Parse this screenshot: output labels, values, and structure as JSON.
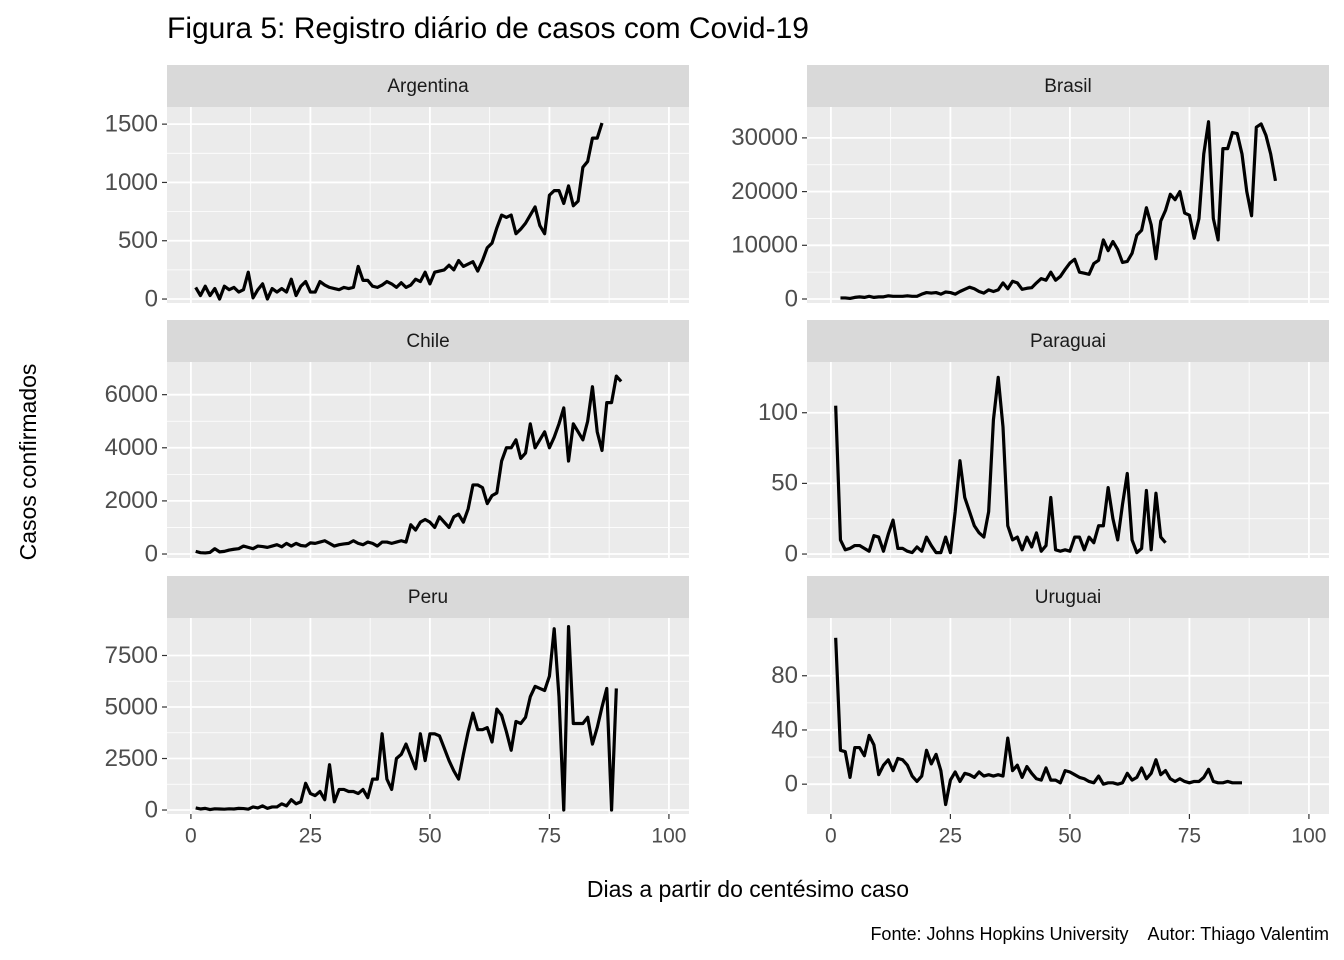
{
  "chart_data": {
    "type": "line",
    "title": "Figura 5: Registro diário de casos com Covid-19",
    "x_label": "Dias a partir do centésimo caso",
    "y_label": "Casos confirmados",
    "caption": "Fonte: Johns Hopkins University    Autor: Thiago Valentim",
    "color": "#000000",
    "grid": true,
    "xlim": [
      -5,
      104.2
    ],
    "xticks": [
      0,
      25,
      50,
      75,
      100
    ],
    "panels": [
      {
        "title": "Argentina",
        "ylim": [
          -34,
          1647
        ],
        "yticks": [
          0,
          500,
          1000,
          1500
        ],
        "x": [
          1,
          2,
          3,
          4,
          5,
          6,
          7,
          8,
          9,
          10,
          11,
          12,
          13,
          14,
          15,
          16,
          17,
          18,
          19,
          20,
          21,
          22,
          23,
          24,
          25,
          26,
          27,
          28,
          29,
          30,
          31,
          32,
          33,
          34,
          35,
          36,
          37,
          38,
          39,
          40,
          41,
          42,
          43,
          44,
          45,
          46,
          47,
          48,
          49,
          50,
          51,
          52,
          53,
          54,
          55,
          56,
          57,
          58,
          59,
          60,
          61,
          62,
          63,
          64,
          65,
          66,
          67,
          68,
          69,
          70,
          71,
          72,
          73,
          74,
          75,
          76,
          77,
          78,
          79,
          80,
          81,
          82,
          83,
          84,
          85,
          86
        ],
        "values": [
          100,
          30,
          110,
          30,
          90,
          0,
          110,
          80,
          100,
          60,
          80,
          230,
          10,
          80,
          130,
          0,
          90,
          60,
          90,
          60,
          170,
          30,
          110,
          150,
          60,
          60,
          150,
          120,
          100,
          90,
          80,
          100,
          90,
          100,
          280,
          160,
          160,
          110,
          100,
          120,
          150,
          130,
          100,
          140,
          100,
          120,
          170,
          150,
          230,
          130,
          230,
          240,
          250,
          290,
          250,
          330,
          280,
          300,
          320,
          240,
          330,
          440,
          480,
          610,
          720,
          700,
          720,
          560,
          600,
          650,
          720,
          790,
          630,
          560,
          890,
          930,
          930,
          820,
          970,
          800,
          840,
          1130,
          1180,
          1380,
          1380,
          1510
        ]
      },
      {
        "title": "Brasil",
        "ylim": [
          -745,
          35750
        ],
        "yticks": [
          0,
          10000,
          20000,
          30000
        ],
        "x": [
          2,
          3,
          4,
          5,
          6,
          7,
          8,
          9,
          10,
          11,
          12,
          13,
          14,
          15,
          16,
          17,
          18,
          19,
          20,
          21,
          22,
          23,
          24,
          25,
          26,
          27,
          28,
          29,
          30,
          31,
          32,
          33,
          34,
          35,
          36,
          37,
          38,
          39,
          40,
          41,
          42,
          43,
          44,
          45,
          46,
          47,
          48,
          49,
          50,
          51,
          52,
          53,
          54,
          55,
          56,
          57,
          58,
          59,
          60,
          61,
          62,
          63,
          64,
          65,
          66,
          67,
          68,
          69,
          70,
          71,
          72,
          73,
          74,
          75,
          76,
          77,
          78,
          79,
          80,
          81,
          82,
          83,
          84,
          85,
          86,
          87,
          88,
          89,
          90,
          91,
          92,
          93
        ],
        "values": [
          200,
          200,
          100,
          300,
          400,
          300,
          500,
          300,
          400,
          400,
          600,
          500,
          500,
          500,
          600,
          500,
          500,
          900,
          1200,
          1100,
          1200,
          900,
          1300,
          1200,
          900,
          1400,
          1800,
          2200,
          1900,
          1400,
          1100,
          1700,
          1400,
          1700,
          3000,
          1900,
          3300,
          3000,
          1800,
          2000,
          2100,
          3000,
          3800,
          3500,
          5000,
          3500,
          4200,
          5500,
          6700,
          7400,
          5000,
          4800,
          4600,
          6600,
          7200,
          11000,
          9000,
          10700,
          9200,
          6800,
          7000,
          8500,
          11900,
          12800,
          17000,
          13800,
          7500,
          14500,
          16500,
          19500,
          18500,
          20000,
          16000,
          15600,
          11300,
          15000,
          27000,
          33000,
          15000,
          11000,
          28000,
          28000,
          31000,
          30800,
          27000,
          20000,
          15500,
          32000,
          32600,
          30500,
          27000,
          22000
        ]
      },
      {
        "title": "Chile",
        "ylim": [
          -150,
          7230
        ],
        "yticks": [
          0,
          2000,
          4000,
          6000
        ],
        "x": [
          1,
          2,
          3,
          4,
          5,
          6,
          7,
          8,
          9,
          10,
          11,
          12,
          13,
          14,
          15,
          16,
          17,
          18,
          19,
          20,
          21,
          22,
          23,
          24,
          25,
          26,
          27,
          28,
          29,
          30,
          31,
          32,
          33,
          34,
          35,
          36,
          37,
          38,
          39,
          40,
          41,
          42,
          43,
          44,
          45,
          46,
          47,
          48,
          49,
          50,
          51,
          52,
          53,
          54,
          55,
          56,
          57,
          58,
          59,
          60,
          61,
          62,
          63,
          64,
          65,
          66,
          67,
          68,
          69,
          70,
          71,
          72,
          73,
          74,
          75,
          76,
          77,
          78,
          79,
          80,
          81,
          82,
          83,
          84,
          85,
          86,
          87,
          88,
          89,
          90
        ],
        "values": [
          100,
          50,
          40,
          60,
          200,
          80,
          100,
          150,
          180,
          200,
          300,
          250,
          200,
          300,
          280,
          250,
          300,
          350,
          270,
          400,
          300,
          400,
          320,
          300,
          420,
          400,
          450,
          500,
          400,
          300,
          350,
          380,
          400,
          500,
          400,
          350,
          450,
          400,
          300,
          450,
          450,
          400,
          450,
          500,
          450,
          1100,
          900,
          1200,
          1300,
          1200,
          1000,
          1400,
          1200,
          1000,
          1400,
          1500,
          1200,
          1700,
          2600,
          2600,
          2500,
          1900,
          2200,
          2300,
          3500,
          4000,
          4000,
          4300,
          3600,
          3800,
          4900,
          4000,
          4300,
          4600,
          4000,
          4400,
          4900,
          5500,
          3500,
          4900,
          4600,
          4300,
          5000,
          6300,
          4600,
          3900,
          5700,
          5700,
          6700,
          6500
        ]
      },
      {
        "title": "Paraguai",
        "ylim": [
          -2.8,
          135.9
        ],
        "yticks": [
          0,
          50,
          100
        ],
        "x": [
          1,
          2,
          3,
          4,
          5,
          6,
          7,
          8,
          9,
          10,
          11,
          12,
          13,
          14,
          15,
          16,
          17,
          18,
          19,
          20,
          21,
          22,
          23,
          24,
          25,
          26,
          27,
          28,
          29,
          30,
          31,
          32,
          33,
          34,
          35,
          36,
          37,
          38,
          39,
          40,
          41,
          42,
          43,
          44,
          45,
          46,
          47,
          48,
          49,
          50,
          51,
          52,
          53,
          54,
          55,
          56,
          57,
          58,
          59,
          60,
          61,
          62,
          63,
          64,
          65,
          66,
          67,
          68,
          69,
          70
        ],
        "values": [
          105,
          10,
          3,
          4,
          6,
          6,
          4,
          2,
          13,
          12,
          2,
          14,
          24,
          4,
          4,
          2,
          1,
          5,
          2,
          12,
          6,
          1,
          1,
          12,
          1,
          30,
          66,
          40,
          30,
          20,
          15,
          12,
          30,
          95,
          125,
          90,
          20,
          10,
          12,
          3,
          12,
          5,
          15,
          2,
          6,
          40,
          3,
          2,
          3,
          2,
          12,
          12,
          3,
          12,
          8,
          20,
          20,
          47,
          25,
          10,
          35,
          57,
          10,
          1,
          4,
          45,
          3,
          43,
          12,
          8
        ]
      },
      {
        "title": "Peru",
        "ylim": [
          -193,
          9320
        ],
        "yticks": [
          0,
          2500,
          5000,
          7500
        ],
        "x": [
          1,
          2,
          3,
          4,
          5,
          6,
          7,
          8,
          9,
          10,
          11,
          12,
          13,
          14,
          15,
          16,
          17,
          18,
          19,
          20,
          21,
          22,
          23,
          24,
          25,
          26,
          27,
          28,
          29,
          30,
          31,
          32,
          33,
          34,
          35,
          36,
          37,
          38,
          39,
          40,
          41,
          42,
          43,
          44,
          45,
          46,
          47,
          48,
          49,
          50,
          51,
          52,
          53,
          54,
          55,
          56,
          57,
          58,
          59,
          60,
          61,
          62,
          63,
          64,
          65,
          66,
          67,
          68,
          69,
          70,
          71,
          72,
          73,
          74,
          75,
          76,
          77,
          78,
          79,
          80,
          81,
          82,
          83,
          84,
          85,
          86,
          87,
          88,
          89
        ],
        "values": [
          100,
          50,
          80,
          20,
          60,
          50,
          40,
          60,
          50,
          80,
          70,
          40,
          150,
          100,
          200,
          80,
          150,
          150,
          300,
          200,
          500,
          300,
          400,
          1300,
          800,
          700,
          900,
          500,
          2200,
          400,
          1000,
          1000,
          900,
          900,
          800,
          1000,
          600,
          1500,
          1500,
          3700,
          1500,
          1000,
          2500,
          2700,
          3200,
          2600,
          2000,
          3700,
          2400,
          3700,
          3700,
          3600,
          3000,
          2400,
          1900,
          1500,
          2700,
          3800,
          4700,
          3900,
          3900,
          4000,
          3300,
          4900,
          4600,
          3800,
          2900,
          4300,
          4200,
          4500,
          5500,
          6000,
          5900,
          5800,
          6500,
          8800,
          5500,
          0,
          8900,
          4200,
          4200,
          4200,
          4500,
          3200,
          4000,
          5000,
          5900,
          0,
          5900
        ]
      },
      {
        "title": "Uruguai",
        "ylim": [
          -22,
          122.6
        ],
        "yticks": [
          0,
          40,
          80
        ],
        "x": [
          1,
          2,
          3,
          4,
          5,
          6,
          7,
          8,
          9,
          10,
          11,
          12,
          13,
          14,
          15,
          16,
          17,
          18,
          19,
          20,
          21,
          22,
          23,
          24,
          25,
          26,
          27,
          28,
          29,
          30,
          31,
          32,
          33,
          34,
          35,
          36,
          37,
          38,
          39,
          40,
          41,
          42,
          43,
          44,
          45,
          46,
          47,
          48,
          49,
          50,
          51,
          52,
          53,
          54,
          55,
          56,
          57,
          58,
          59,
          60,
          61,
          62,
          63,
          64,
          65,
          66,
          67,
          68,
          69,
          70,
          71,
          72,
          73,
          74,
          75,
          76,
          77,
          78,
          79,
          80,
          81,
          82,
          83,
          84,
          85,
          86
        ],
        "values": [
          108,
          25,
          24,
          5,
          27,
          27,
          21,
          36,
          29,
          7,
          14,
          18,
          10,
          19,
          18,
          14,
          6,
          2,
          6,
          25,
          15,
          22,
          10,
          -15,
          3,
          9,
          2,
          8,
          7,
          5,
          9,
          6,
          7,
          6,
          7,
          6,
          34,
          10,
          14,
          5,
          13,
          8,
          4,
          3,
          12,
          3,
          3,
          1,
          10,
          9,
          7,
          5,
          4,
          2,
          1,
          6,
          0,
          1,
          1,
          0,
          1,
          8,
          3,
          5,
          12,
          4,
          8,
          18,
          7,
          10,
          4,
          2,
          4,
          2,
          1,
          2,
          2,
          5,
          11,
          2,
          1,
          1,
          2,
          1,
          1,
          1
        ]
      }
    ]
  }
}
